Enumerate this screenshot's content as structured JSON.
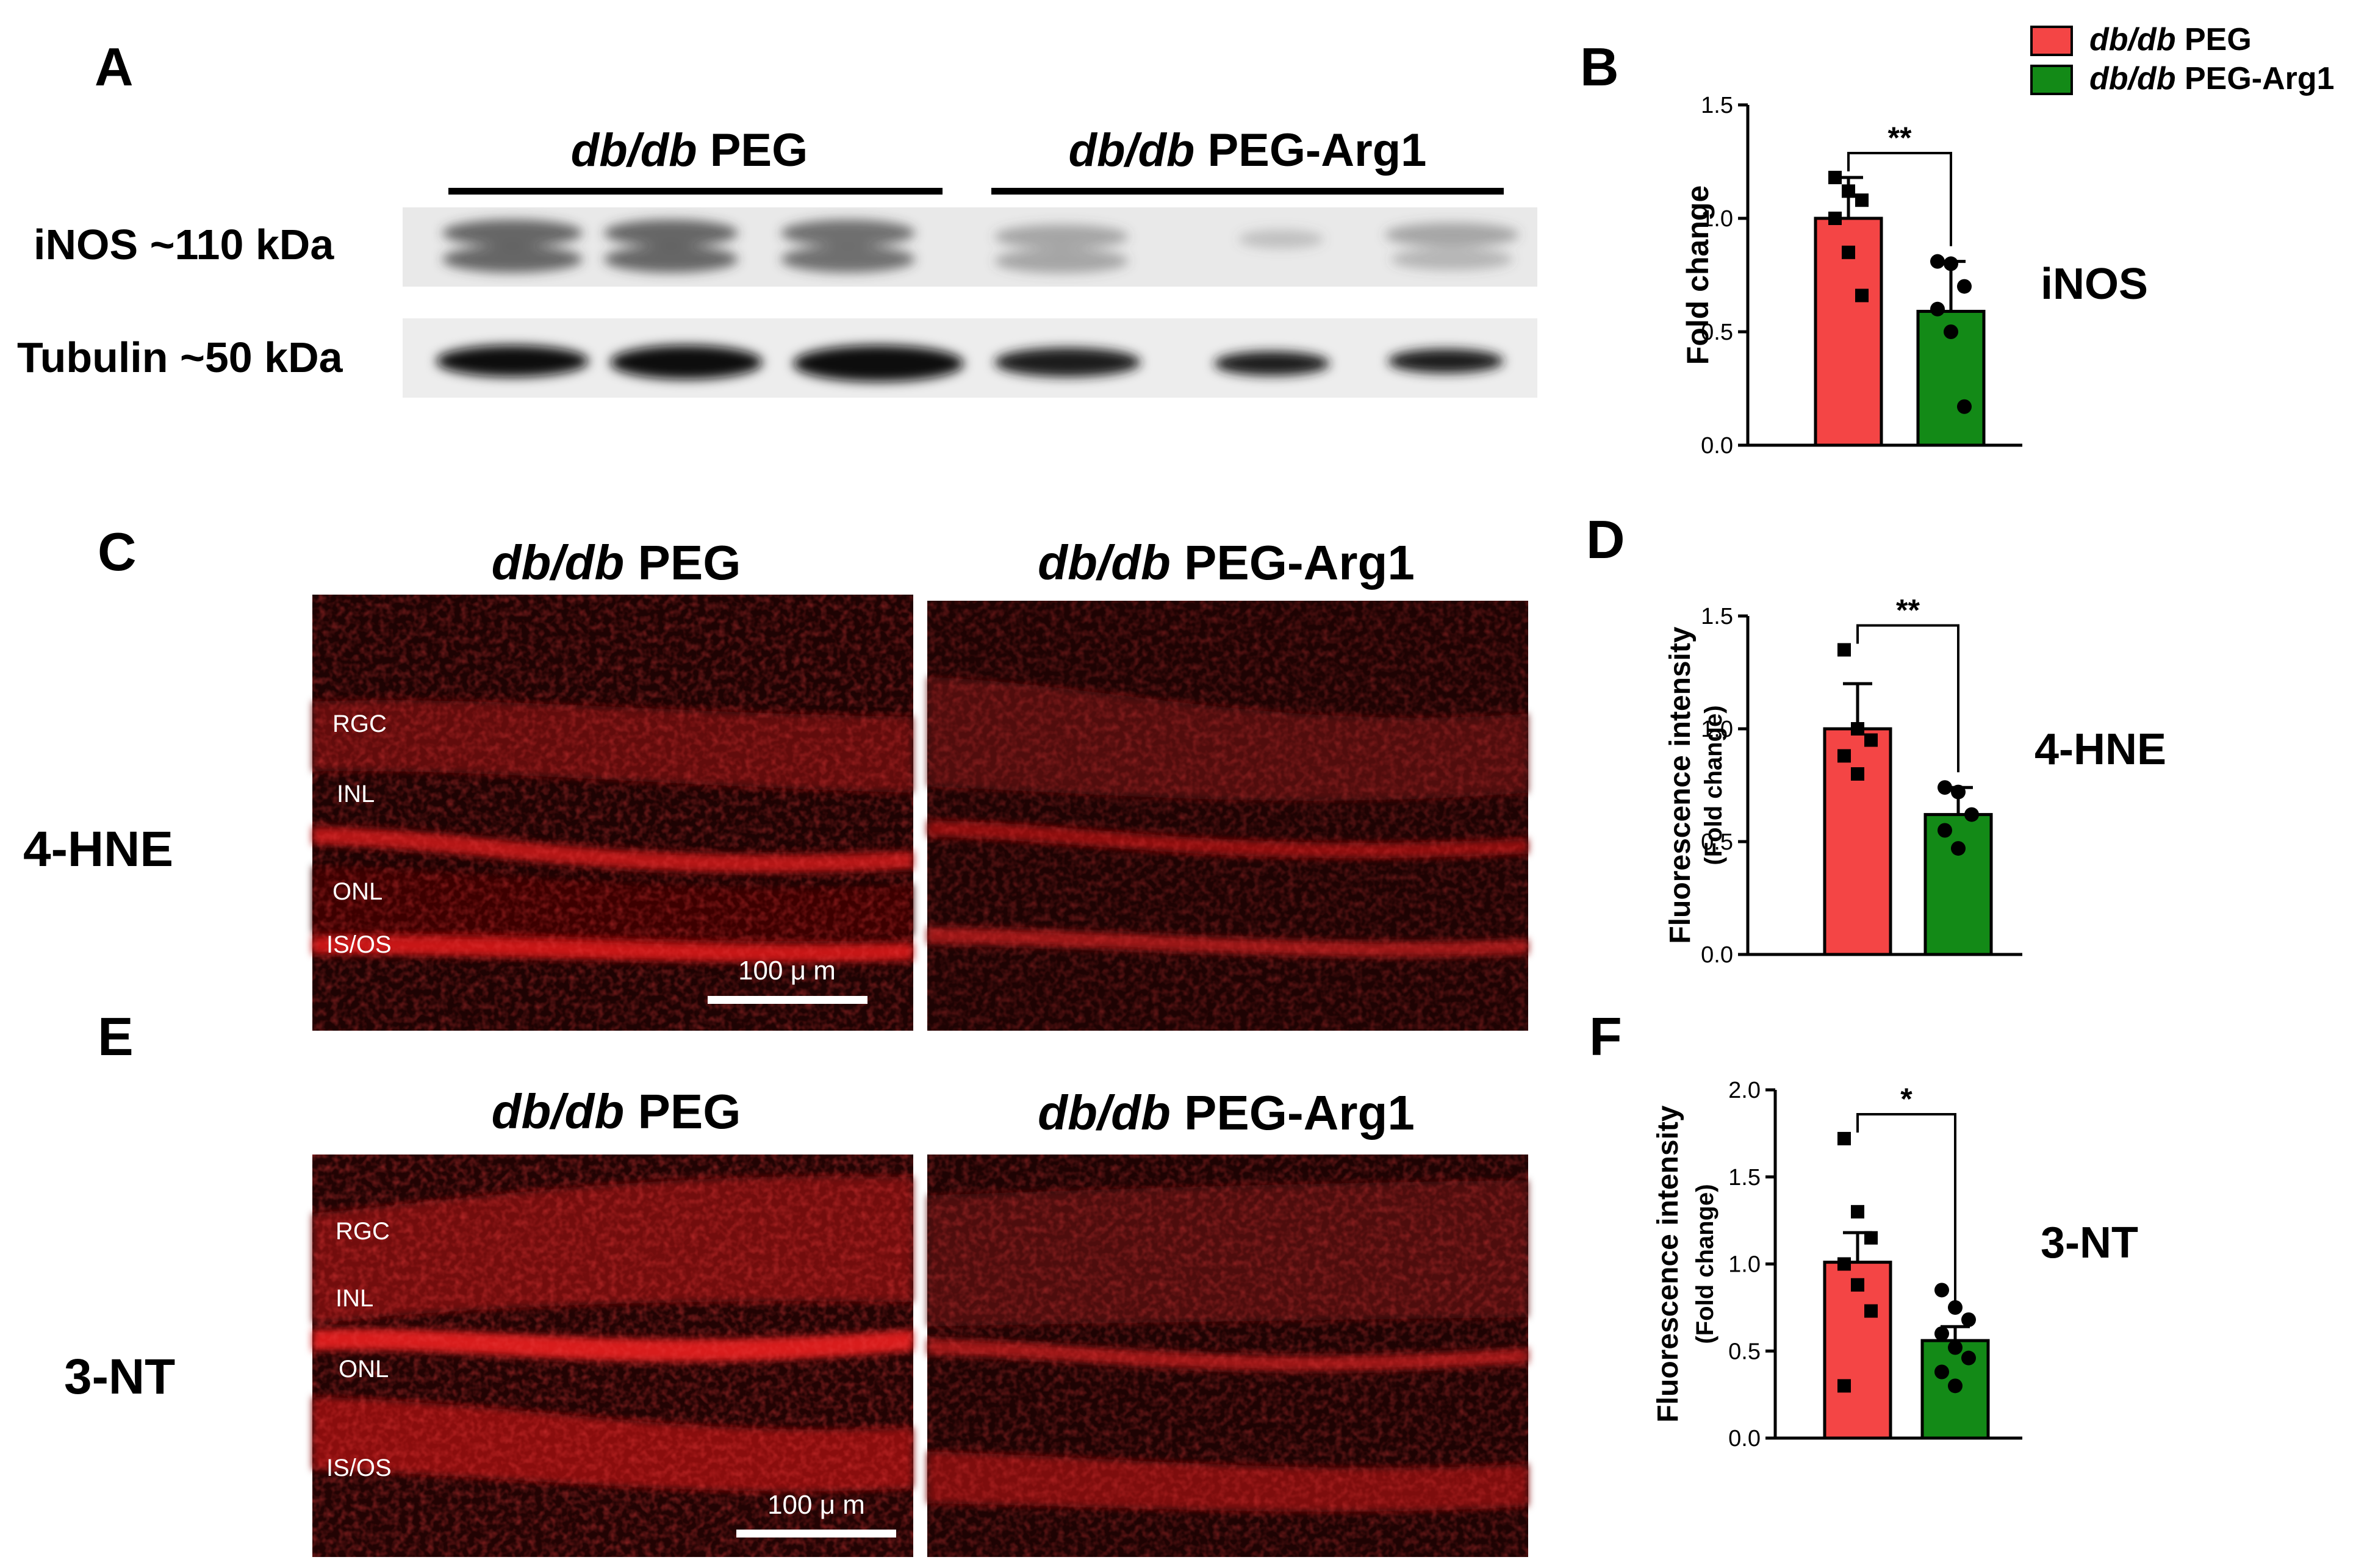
{
  "panel_letters": [
    "A",
    "B",
    "C",
    "D",
    "E",
    "F"
  ],
  "groups": {
    "g1": {
      "italic": "db/db",
      "rest": " PEG",
      "color": "#f44545"
    },
    "g2": {
      "italic": "db/db",
      "rest": " PEG-Arg1",
      "color": "#138a17"
    }
  },
  "blot": {
    "bands": [
      {
        "label": "iNOS ~110 kDa"
      },
      {
        "label": "Tubulin ~50 kDa"
      }
    ]
  },
  "micro": {
    "row1_side_label": "4-HNE",
    "row2_side_label": "3-NT",
    "row1_layers": [
      "RGC",
      "INL",
      "ONL",
      "IS/OS"
    ],
    "row2_layers": [
      "RGC",
      "INL",
      "ONL",
      "IS/OS"
    ],
    "scalebar_label": "100 μ m",
    "colors": {
      "background": "#1e0303",
      "signal": "#c81414"
    }
  },
  "chart_data": [
    {
      "type": "bar",
      "panel": "B",
      "ylabel": [
        "Fold change"
      ],
      "ylim": [
        0,
        1.5
      ],
      "yticks": [
        "0.0",
        "0.5",
        "1.0",
        "1.5"
      ],
      "side_label": "iNOS",
      "significance": "**",
      "series": [
        {
          "value": 1.0,
          "error": 0.18,
          "marker": "square",
          "points": [
            1.18,
            1.12,
            1.08,
            1.0,
            0.85,
            0.66
          ]
        },
        {
          "value": 0.59,
          "error": 0.22,
          "marker": "circle",
          "points": [
            0.81,
            0.8,
            0.7,
            0.6,
            0.5,
            0.17
          ]
        }
      ]
    },
    {
      "type": "bar",
      "panel": "D",
      "ylabel": [
        "Fold change)",
        "Fluorescence intensity"
      ],
      "ylabel_note": "second line printed inside parentheses",
      "ylabel_lines": [
        "(Fold change)",
        "Fluorescence intensity"
      ],
      "ylim": [
        0,
        1.5
      ],
      "yticks": [
        "0.0",
        "0.5",
        "1.0",
        "1.5"
      ],
      "side_label": "4-HNE",
      "significance": "**",
      "series": [
        {
          "value": 1.0,
          "error": 0.2,
          "marker": "square",
          "points": [
            1.35,
            1.0,
            0.95,
            0.88,
            0.8
          ]
        },
        {
          "value": 0.62,
          "error": 0.12,
          "marker": "circle",
          "points": [
            0.74,
            0.72,
            0.62,
            0.55,
            0.47
          ]
        }
      ]
    },
    {
      "type": "bar",
      "panel": "F",
      "ylabel_lines": [
        "(Fold change)",
        "Fluorescence intensity"
      ],
      "ylim": [
        0,
        2.0
      ],
      "yticks": [
        "0.0",
        "0.5",
        "1.0",
        "1.5",
        "2.0"
      ],
      "side_label": "3-NT",
      "significance": "*",
      "series": [
        {
          "value": 1.01,
          "error": 0.17,
          "marker": "square",
          "points": [
            1.72,
            1.3,
            1.15,
            1.0,
            0.88,
            0.73,
            0.3
          ]
        },
        {
          "value": 0.56,
          "error": 0.08,
          "marker": "circle",
          "points": [
            0.85,
            0.75,
            0.68,
            0.6,
            0.52,
            0.46,
            0.38,
            0.3
          ]
        }
      ]
    }
  ]
}
